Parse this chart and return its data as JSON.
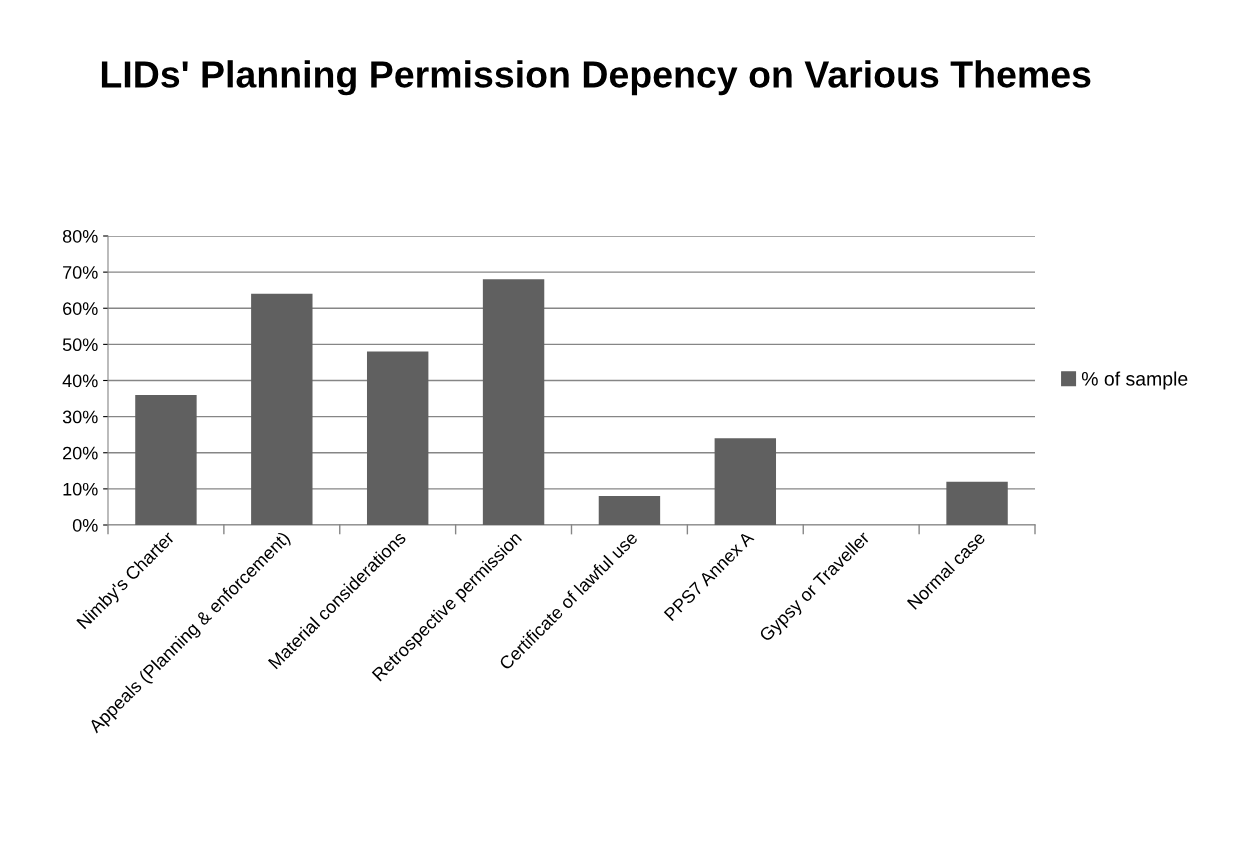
{
  "chart_data": {
    "type": "bar",
    "title": "LIDs' Planning Permission Depency on Various Themes",
    "categories": [
      "Nimby's Charter",
      "Appeals (Planning & enforcement)",
      "Material considerations",
      "Retrospective permission",
      "Certificate of lawful use",
      "PPS7 Annex A",
      "Gypsy or Traveller",
      "Normal case"
    ],
    "series": [
      {
        "name": "% of sample",
        "color": "#606060",
        "values": [
          36,
          64,
          48,
          68,
          8,
          24,
          0,
          12
        ]
      }
    ],
    "ylim": [
      0,
      80
    ],
    "yticks": [
      {
        "value": 0,
        "label": "0%"
      },
      {
        "value": 10,
        "label": "10%"
      },
      {
        "value": 20,
        "label": "20%"
      },
      {
        "value": 30,
        "label": "30%"
      },
      {
        "value": 40,
        "label": "40%"
      },
      {
        "value": 50,
        "label": "50%"
      },
      {
        "value": 60,
        "label": "60%"
      },
      {
        "value": 70,
        "label": "70%"
      },
      {
        "value": 80,
        "label": "80%"
      }
    ],
    "grid": "y",
    "legend": "right"
  }
}
